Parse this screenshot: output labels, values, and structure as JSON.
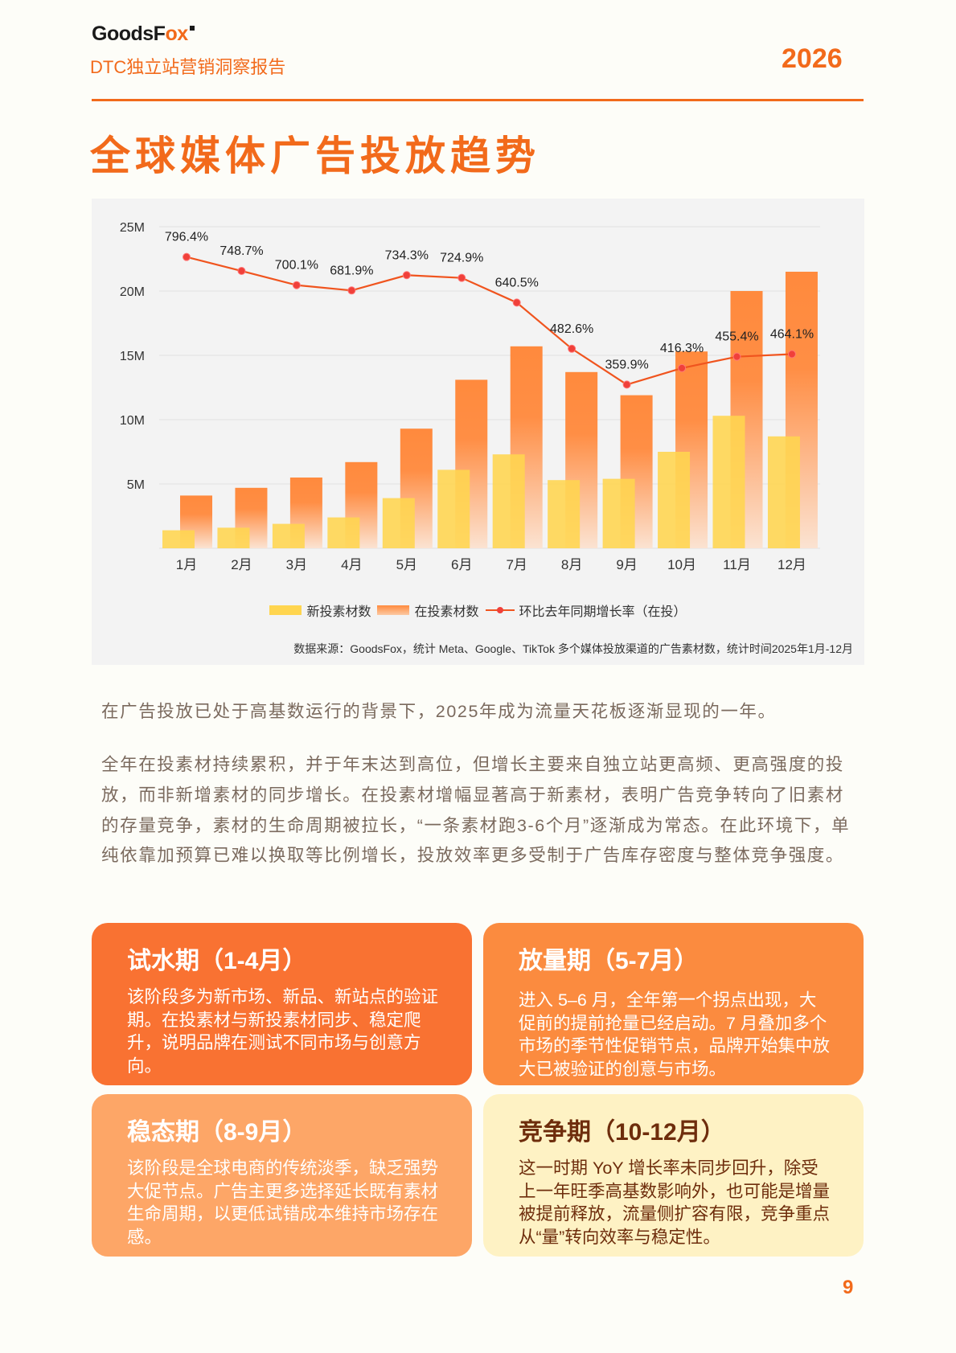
{
  "header": {
    "logo": "GoodsFox",
    "subtitle": "DTC独立站营销洞察报告",
    "year": "2026"
  },
  "title": "全球媒体广告投放趋势",
  "chart_data": {
    "type": "bar",
    "categories": [
      "1月",
      "2月",
      "3月",
      "4月",
      "5月",
      "6月",
      "7月",
      "8月",
      "9月",
      "10月",
      "11月",
      "12月"
    ],
    "series": [
      {
        "name": "新投素材数",
        "type": "bar",
        "color": "#FFD54F",
        "values_millions": [
          1.4,
          1.6,
          1.9,
          2.4,
          3.9,
          6.1,
          7.3,
          5.3,
          5.4,
          7.5,
          10.3,
          8.7
        ]
      },
      {
        "name": "在投素材数",
        "type": "bar",
        "color": "#FF8A3D",
        "values_millions": [
          4.1,
          4.7,
          5.5,
          6.7,
          9.3,
          13.1,
          15.7,
          13.7,
          11.9,
          15.3,
          20.0,
          21.5
        ]
      },
      {
        "name": "环比去年同期增长率（在投）",
        "type": "line",
        "axis": "secondary",
        "color": "#F0541E",
        "values_percent": [
          796.4,
          748.7,
          700.1,
          681.9,
          734.3,
          724.9,
          640.5,
          482.6,
          359.9,
          416.3,
          455.4,
          464.1
        ],
        "labels": [
          "796.4%",
          "748.7%",
          "700.1%",
          "681.9%",
          "734.3%",
          "724.9%",
          "640.5%",
          "482.6%",
          "359.9%",
          "416.3%",
          "455.4%",
          "464.1%"
        ]
      }
    ],
    "yticks": [
      "5M",
      "10M",
      "15M",
      "20M",
      "25M"
    ],
    "ylim": [
      0,
      25
    ],
    "y2lim": [
      -200,
      900
    ],
    "grid": true,
    "legend": "bottom",
    "source": "数据来源：GoodsFox，统计 Meta、Google、TikTok 多个媒体投放渠道的广告素材数，统计时间2025年1月-12月"
  },
  "paragraphs": [
    "在广告投放已处于高基数运行的背景下，2025年成为流量天花板逐渐显现的一年。",
    "全年在投素材持续累积，并于年末达到高位，但增长主要来自独立站更高频、更高强度的投放，而非新增素材的同步增长。在投素材增幅显著高于新素材，表明广告竞争转向了旧素材的存量竞争，素材的生命周期被拉长，“一条素材跑3-6个月”逐渐成为常态。在此环境下，单纯依靠加预算已难以换取等比例增长，投放效率更多受制于广告库存密度与整体竞争强度。"
  ],
  "cards": [
    {
      "title": "试水期（1-4月）",
      "body": "该阶段多为新市场、新品、新站点的验证期。在投素材与新投素材同步、稳定爬升，说明品牌在测试不同市场与创意方向。"
    },
    {
      "title": "放量期（5-7月）",
      "body": "进入 5–6 月，全年第一个拐点出现，大促前的提前抢量已经启动。7 月叠加多个市场的季节性促销节点，品牌开始集中放大已被验证的创意与市场。"
    },
    {
      "title": "稳态期（8-9月）",
      "body": "该阶段是全球电商的传统淡季，缺乏强势大促节点。广告主更多选择延长既有素材生命周期，以更低试错成本维持市场存在感。"
    },
    {
      "title": "竞争期（10-12月）",
      "body": "这一时期 YoY 增长率未同步回升，除受上一年旺季高基数影响外，也可能是增量被提前释放，流量侧扩容有限，竞争重点从“量”转向效率与稳定性。"
    }
  ],
  "page_number": "9",
  "colors": {
    "accent": "#F26A1B",
    "card1": "#F97232",
    "card2": "#FB8B3F",
    "card3": "#FDA667",
    "card4": "#FEF2C4"
  }
}
